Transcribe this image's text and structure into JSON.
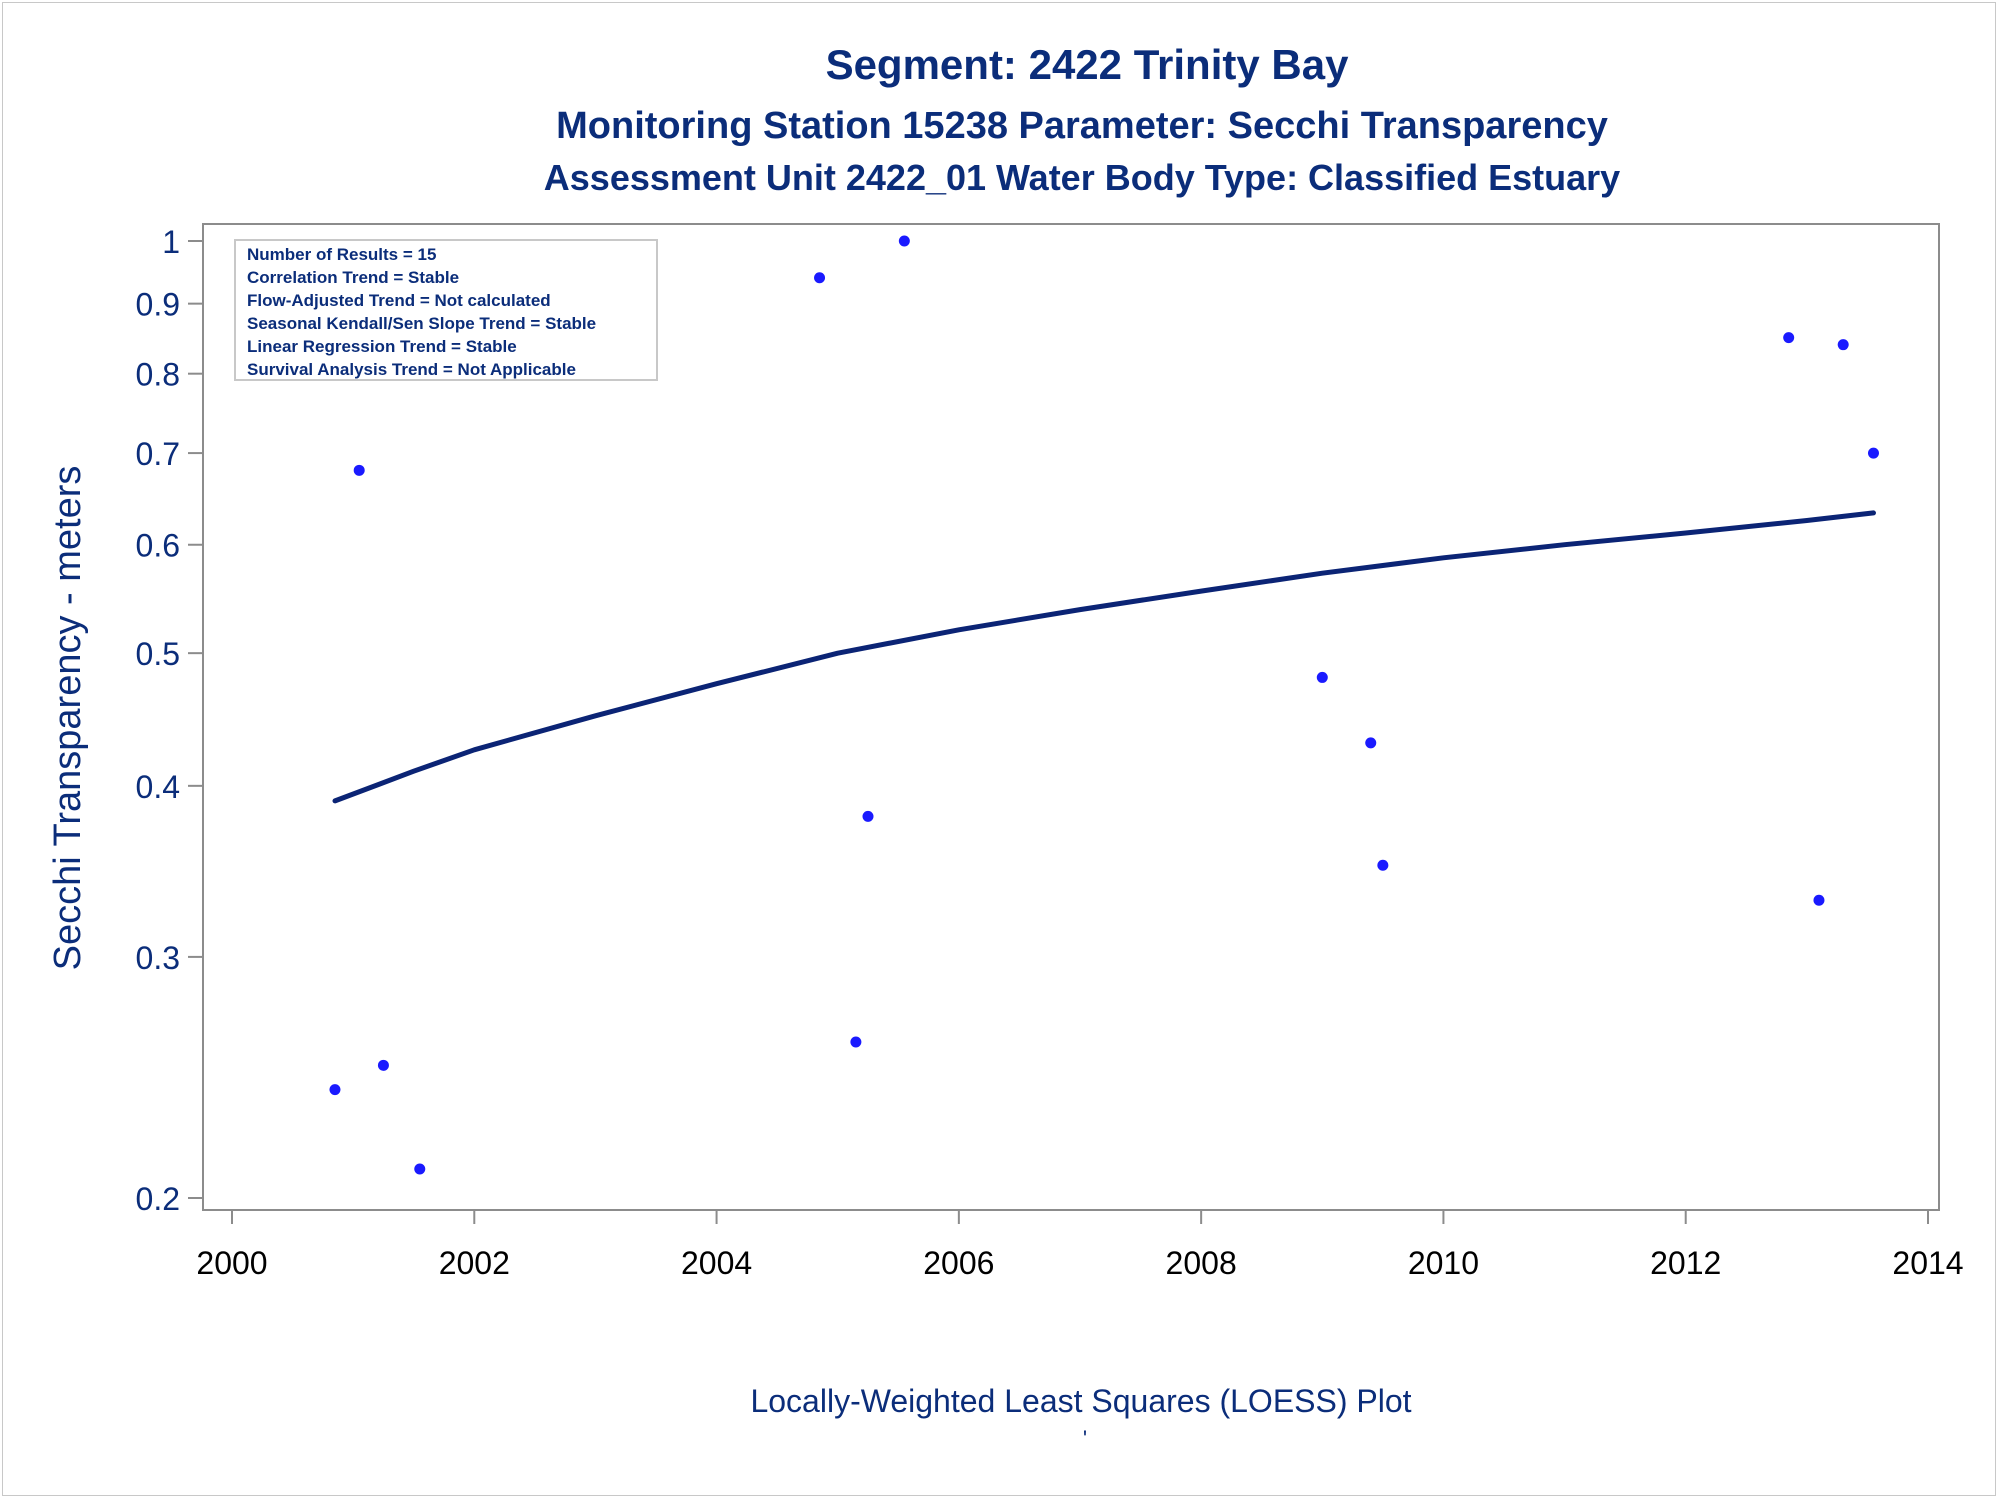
{
  "chart_data": {
    "type": "scatter",
    "title": "Segment: 2422  Trinity Bay",
    "subtitle": "Monitoring Station 15238 Parameter: Secchi Transparency",
    "subtitle2": "Assessment Unit 2422_01   Water Body Type: Classified Estuary",
    "ylabel": "Secchi Transparency - meters",
    "footnote": "Locally-Weighted Least Squares (LOESS) Plot",
    "footnote2": "'",
    "yscale": "log",
    "xlim": [
      2000,
      2014
    ],
    "ylim": [
      0.2,
      1.0
    ],
    "xticks": [
      "2000",
      "2002",
      "2004",
      "2006",
      "2008",
      "2010",
      "2012",
      "2014"
    ],
    "yticks": [
      "0.2",
      "0.3",
      "0.4",
      "0.5",
      "0.6",
      "0.7",
      "0.8",
      "0.9",
      "1"
    ],
    "info_box_lines": [
      "Number of Results = 15",
      "Correlation Trend = Stable",
      "Flow-Adjusted Trend = Not calculated",
      "Seasonal Kendall/Sen Slope Trend = Stable",
      "Linear Regression Trend = Stable",
      "Survival Analysis Trend = Not Applicable"
    ],
    "legend_position": "top-left",
    "grid": false,
    "points": [
      {
        "x": 2000.85,
        "y": 0.24
      },
      {
        "x": 2001.05,
        "y": 0.68
      },
      {
        "x": 2001.25,
        "y": 0.25
      },
      {
        "x": 2001.55,
        "y": 0.21
      },
      {
        "x": 2004.85,
        "y": 0.94
      },
      {
        "x": 2005.15,
        "y": 0.26
      },
      {
        "x": 2005.25,
        "y": 0.38
      },
      {
        "x": 2005.55,
        "y": 1.0
      },
      {
        "x": 2009.0,
        "y": 0.48
      },
      {
        "x": 2009.4,
        "y": 0.43
      },
      {
        "x": 2009.5,
        "y": 0.35
      },
      {
        "x": 2012.85,
        "y": 0.85
      },
      {
        "x": 2013.1,
        "y": 0.33
      },
      {
        "x": 2013.3,
        "y": 0.84
      },
      {
        "x": 2013.55,
        "y": 0.7
      }
    ],
    "loess_line": [
      {
        "x": 2000.85,
        "y": 0.39
      },
      {
        "x": 2001.5,
        "y": 0.41
      },
      {
        "x": 2002.0,
        "y": 0.425
      },
      {
        "x": 2003.0,
        "y": 0.45
      },
      {
        "x": 2004.0,
        "y": 0.475
      },
      {
        "x": 2005.0,
        "y": 0.5
      },
      {
        "x": 2006.0,
        "y": 0.52
      },
      {
        "x": 2007.0,
        "y": 0.538
      },
      {
        "x": 2008.0,
        "y": 0.555
      },
      {
        "x": 2009.0,
        "y": 0.572
      },
      {
        "x": 2010.0,
        "y": 0.587
      },
      {
        "x": 2011.0,
        "y": 0.6
      },
      {
        "x": 2012.0,
        "y": 0.612
      },
      {
        "x": 2013.0,
        "y": 0.625
      },
      {
        "x": 2013.55,
        "y": 0.633
      }
    ],
    "colors": {
      "points": "#1a1aff",
      "line": "#0b2475",
      "text": "#0b2d7a",
      "axis": "#8c8c8c"
    }
  }
}
